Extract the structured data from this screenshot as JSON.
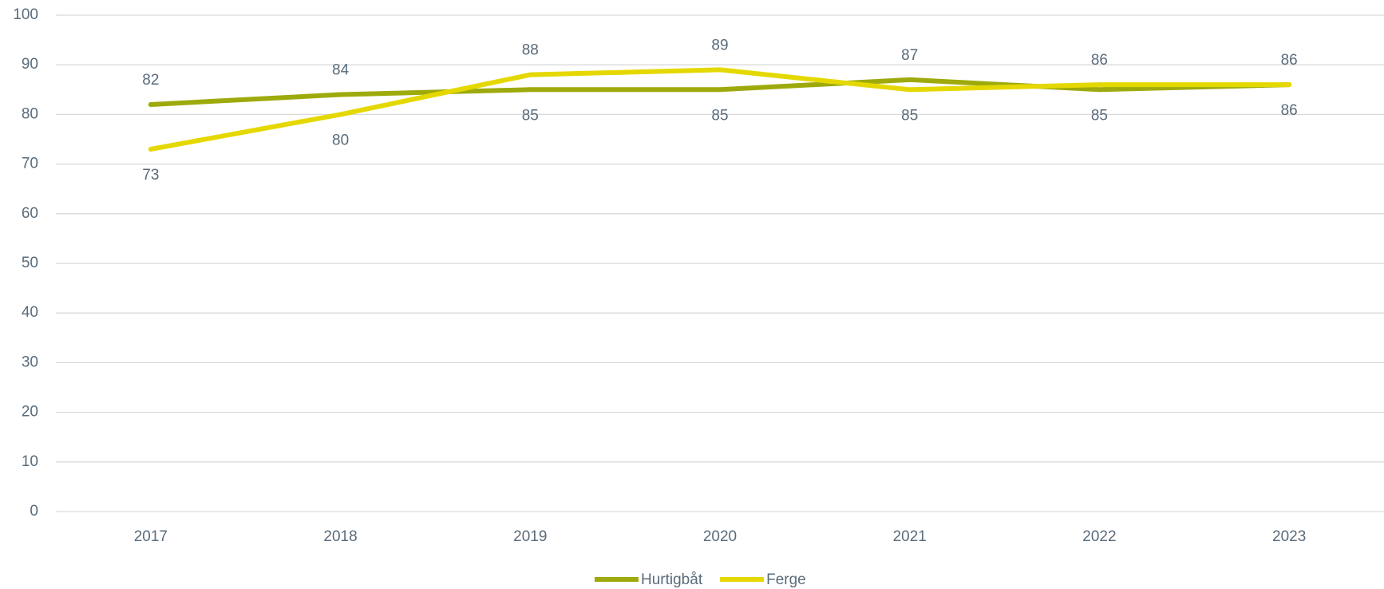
{
  "chart_data": {
    "type": "line",
    "categories": [
      "2017",
      "2018",
      "2019",
      "2020",
      "2021",
      "2022",
      "2023"
    ],
    "series": [
      {
        "name": "Hurtigbåt",
        "color": "#9eaa0c",
        "values": [
          82,
          84,
          85,
          85,
          87,
          85,
          86
        ]
      },
      {
        "name": "Ferge",
        "color": "#e5d800",
        "values": [
          73,
          80,
          88,
          89,
          85,
          86,
          86
        ]
      }
    ],
    "ylim": [
      0,
      100
    ],
    "yticks": [
      0,
      10,
      20,
      30,
      40,
      50,
      60,
      70,
      80,
      90,
      100
    ],
    "grid": true,
    "legend": "bottom"
  }
}
